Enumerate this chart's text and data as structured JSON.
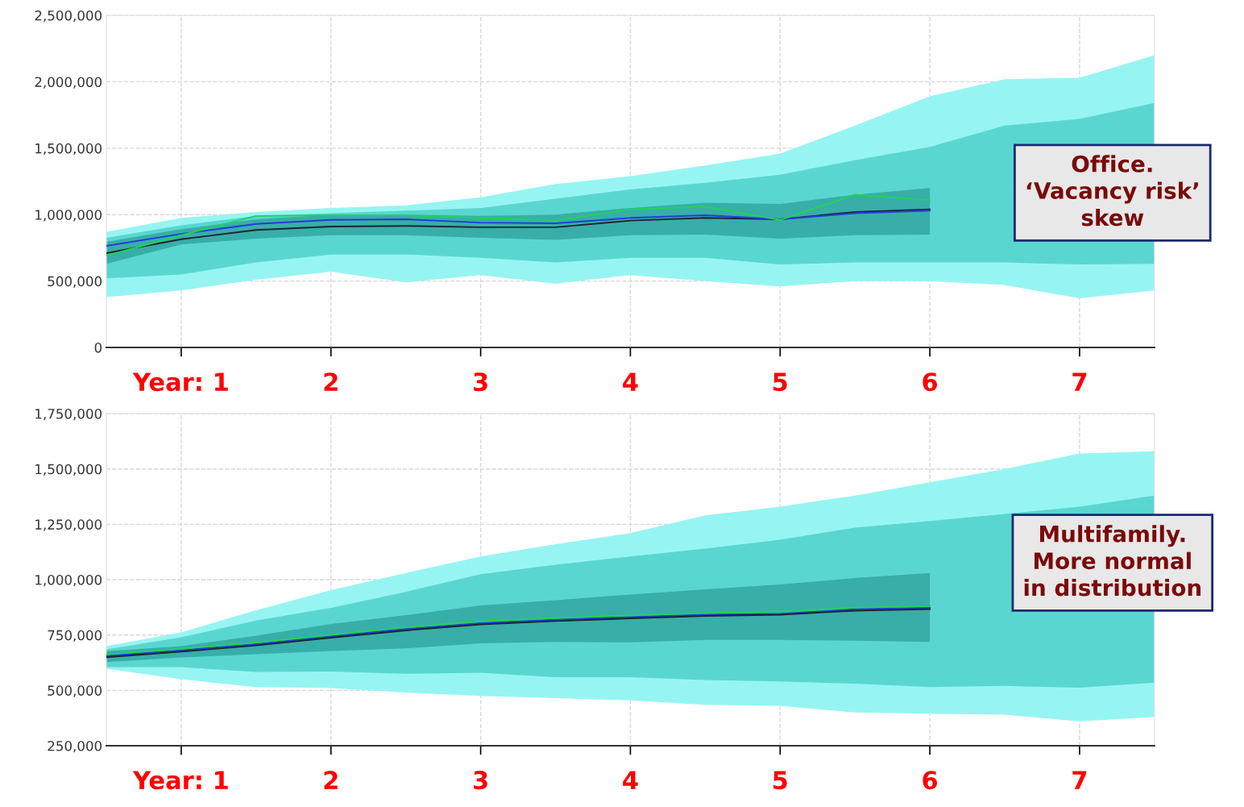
{
  "chart_data": [
    {
      "type": "line",
      "x": [
        0.5,
        1,
        1.5,
        2,
        2.5,
        3,
        3.5,
        4,
        4.5,
        5,
        5.5,
        6,
        6.5,
        7,
        7.5
      ],
      "xlim": [
        0.5,
        7.5
      ],
      "xticks": [
        {
          "value": 1,
          "label": "Year: 1"
        },
        {
          "value": 2,
          "label": "2"
        },
        {
          "value": 3,
          "label": "3"
        },
        {
          "value": 4,
          "label": "4"
        },
        {
          "value": 5,
          "label": "5"
        },
        {
          "value": 6,
          "label": "6"
        },
        {
          "value": 7,
          "label": "7"
        }
      ],
      "ylim": [
        0,
        2500000
      ],
      "yticks": [
        {
          "value": 0,
          "label": "0"
        },
        {
          "value": 500000,
          "label": "500,000"
        },
        {
          "value": 1000000,
          "label": "1,000,000"
        },
        {
          "value": 1500000,
          "label": "1,500,000"
        },
        {
          "value": 2000000,
          "label": "2,000,000"
        },
        {
          "value": 2500000,
          "label": "2,500,000"
        }
      ],
      "grid": true,
      "marker": "none",
      "line_style": "solid",
      "annotations": [
        "Office.\n‘Vacancy risk’\nskew"
      ],
      "series": [
        {
          "type": "line",
          "color": "#96f5f2",
          "values": [
            null,
            null,
            null,
            null,
            null,
            null,
            null,
            null,
            null,
            null,
            null,
            null,
            null,
            null,
            null
          ],
          "lower": [
            380000,
            430000,
            510000,
            570000,
            490000,
            545000,
            480000,
            545000,
            500000,
            460000,
            500000,
            500000,
            470000,
            370000,
            430000
          ],
          "upper": [
            870000,
            975000,
            1020000,
            1050000,
            1070000,
            1130000,
            1230000,
            1290000,
            1370000,
            1460000,
            1670000,
            1890000,
            2020000,
            2030000,
            2200000
          ]
        },
        {
          "type": "line",
          "color": "#5ad6d0",
          "values": [
            null,
            null,
            null,
            null,
            null,
            null,
            null,
            null,
            null,
            null,
            null,
            null,
            null,
            null,
            null
          ],
          "lower": [
            520000,
            550000,
            640000,
            700000,
            700000,
            675000,
            640000,
            675000,
            675000,
            625000,
            640000,
            640000,
            640000,
            625000,
            630000
          ],
          "upper": [
            825000,
            920000,
            990000,
            1010000,
            1030000,
            1050000,
            1120000,
            1190000,
            1240000,
            1300000,
            1410000,
            1510000,
            1670000,
            1720000,
            1840000
          ]
        },
        {
          "type": "line",
          "color": "#38aea8",
          "values": [
            null,
            null,
            null,
            null,
            null,
            null,
            null,
            null,
            null,
            null,
            null,
            null,
            null,
            null,
            null
          ],
          "lower": [
            630000,
            775000,
            820000,
            845000,
            845000,
            825000,
            810000,
            845000,
            850000,
            820000,
            845000,
            850000,
            null,
            null,
            null
          ],
          "upper": [
            795000,
            890000,
            965000,
            1000000,
            1000000,
            990000,
            1000000,
            1050000,
            1090000,
            1080000,
            1150000,
            1200000,
            null,
            null,
            null
          ]
        },
        {
          "type": "line",
          "color": "#1c2430",
          "values": [
            710000,
            815000,
            885000,
            910000,
            915000,
            905000,
            905000,
            955000,
            975000,
            965000,
            1020000,
            1040000,
            null,
            null,
            null
          ]
        },
        {
          "type": "line",
          "color": "#1f3fd6",
          "values": [
            765000,
            855000,
            930000,
            960000,
            965000,
            940000,
            935000,
            975000,
            995000,
            965000,
            1010000,
            1030000,
            null,
            null,
            null
          ]
        },
        {
          "type": "line",
          "color": "#22d35a",
          "values": [
            690000,
            845000,
            990000,
            995000,
            995000,
            975000,
            955000,
            1040000,
            1060000,
            960000,
            1150000,
            1110000,
            null,
            null,
            null
          ]
        }
      ]
    },
    {
      "type": "line",
      "x": [
        0.5,
        1,
        1.5,
        2,
        2.5,
        3,
        3.5,
        4,
        4.5,
        5,
        5.5,
        6,
        6.5,
        7,
        7.5
      ],
      "xlim": [
        0.5,
        7.5
      ],
      "xticks": [
        {
          "value": 1,
          "label": "Year: 1"
        },
        {
          "value": 2,
          "label": "2"
        },
        {
          "value": 3,
          "label": "3"
        },
        {
          "value": 4,
          "label": "4"
        },
        {
          "value": 5,
          "label": "5"
        },
        {
          "value": 6,
          "label": "6"
        },
        {
          "value": 7,
          "label": "7"
        }
      ],
      "ylim": [
        250000,
        1750000
      ],
      "yticks": [
        {
          "value": 250000,
          "label": "250,000"
        },
        {
          "value": 500000,
          "label": "500,000"
        },
        {
          "value": 750000,
          "label": "750,000"
        },
        {
          "value": 1000000,
          "label": "1,000,000"
        },
        {
          "value": 1250000,
          "label": "1,250,000"
        },
        {
          "value": 1500000,
          "label": "1,500,000"
        },
        {
          "value": 1750000,
          "label": "1,750,000"
        }
      ],
      "grid": true,
      "marker": "none",
      "line_style": "solid",
      "annotations": [
        "Multifamily.\nMore normal\nin distribution"
      ],
      "series": [
        {
          "type": "line",
          "color": "#96f5f2",
          "values": [
            null,
            null,
            null,
            null,
            null,
            null,
            null,
            null,
            null,
            null,
            null,
            null,
            null,
            null,
            null
          ],
          "lower": [
            598000,
            550000,
            515000,
            510000,
            490000,
            475000,
            465000,
            455000,
            435000,
            430000,
            400000,
            395000,
            390000,
            360000,
            380000
          ],
          "upper": [
            700000,
            762000,
            862000,
            953000,
            1030000,
            1105000,
            1160000,
            1210000,
            1290000,
            1330000,
            1380000,
            1440000,
            1500000,
            1570000,
            1580000
          ]
        },
        {
          "type": "line",
          "color": "#5ad6d0",
          "values": [
            null,
            null,
            null,
            null,
            null,
            null,
            null,
            null,
            null,
            null,
            null,
            null,
            null,
            null,
            null
          ],
          "lower": [
            605000,
            605000,
            583000,
            585000,
            575000,
            580000,
            560000,
            560000,
            547000,
            540000,
            530000,
            515000,
            520000,
            512000,
            535000
          ],
          "upper": [
            685000,
            740000,
            815000,
            873000,
            945000,
            1025000,
            1067000,
            1105000,
            1140000,
            1180000,
            1235000,
            1265000,
            1297000,
            1330000,
            1380000
          ]
        },
        {
          "type": "line",
          "color": "#38aea8",
          "values": [
            null,
            null,
            null,
            null,
            null,
            null,
            null,
            null,
            null,
            null,
            null,
            null,
            null,
            null,
            null
          ],
          "lower": [
            628000,
            649000,
            663000,
            678000,
            690000,
            712000,
            719000,
            717000,
            728000,
            728000,
            724000,
            719000,
            null,
            null,
            null
          ],
          "upper": [
            677000,
            700000,
            747000,
            800000,
            840000,
            884000,
            907000,
            933000,
            956000,
            978000,
            1007000,
            1030000,
            null,
            null,
            null
          ]
        },
        {
          "type": "line",
          "color": "#1f3fd6",
          "values": [
            656000,
            681000,
            709000,
            744000,
            777000,
            804000,
            819000,
            831000,
            842000,
            845000,
            866000,
            873000,
            null,
            null,
            null
          ]
        },
        {
          "type": "line",
          "color": "#1c2430",
          "values": [
            650000,
            675000,
            703000,
            738000,
            771000,
            798000,
            813000,
            825000,
            836000,
            842000,
            860000,
            867000,
            null,
            null,
            null
          ]
        },
        {
          "type": "line",
          "color": "#22d35a",
          "values": [
            662000,
            688000,
            716000,
            751000,
            785000,
            812000,
            827000,
            839000,
            850000,
            856000,
            874000,
            881000,
            null,
            null,
            null
          ]
        }
      ]
    }
  ]
}
